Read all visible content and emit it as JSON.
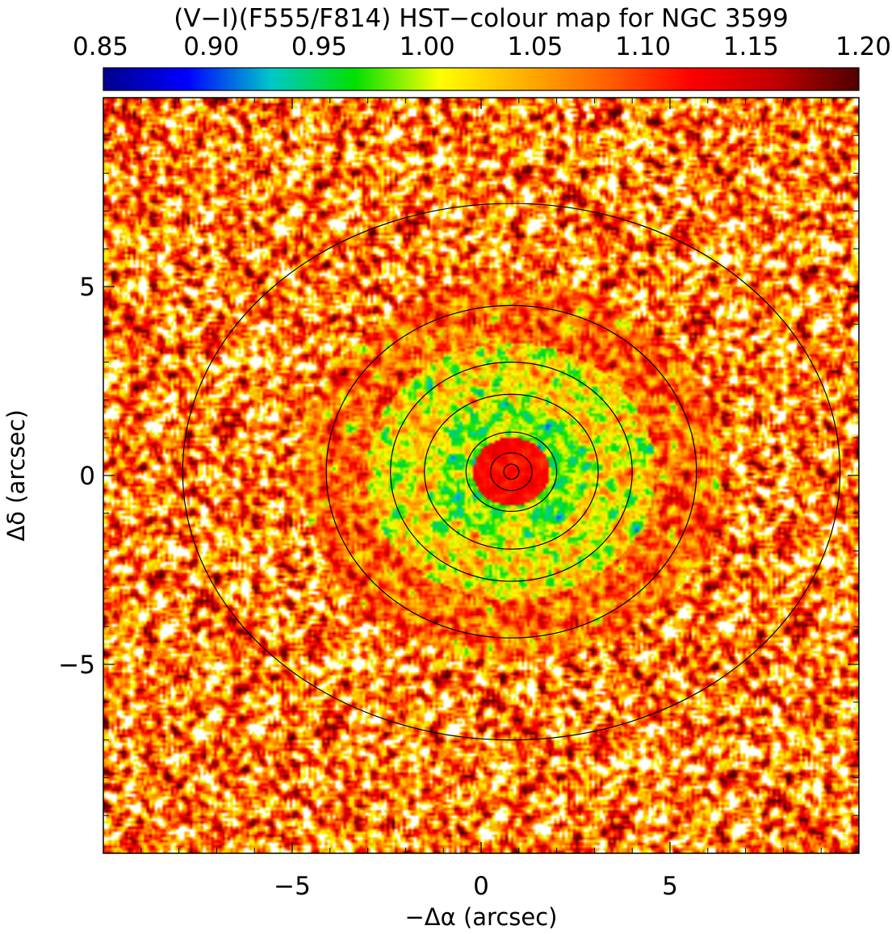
{
  "chart_data": {
    "type": "heatmap",
    "title": "(V−I)(F555/F814) HST−colour map for NGC 3599",
    "xlabel": "−Δα (arcsec)",
    "ylabel": "Δδ (arcsec)",
    "xlim": [
      -10,
      10
    ],
    "ylim": [
      -10,
      10
    ],
    "x_ticks": [
      -5,
      0,
      5
    ],
    "x_tick_labels": [
      "−5",
      "0",
      "5"
    ],
    "y_ticks": [
      -5,
      0,
      5
    ],
    "y_tick_labels": [
      "−5",
      "0",
      "5"
    ],
    "colorbar": {
      "min": 0.85,
      "max": 1.2,
      "ticks": [
        0.85,
        0.9,
        0.95,
        1.0,
        1.05,
        1.1,
        1.15,
        1.2
      ],
      "tick_labels": [
        "0.85",
        "0.90",
        "0.95",
        "1.00",
        "1.05",
        "1.10",
        "1.15",
        "1.20"
      ],
      "colormap": [
        "#00008c",
        "#0000ff",
        "#00c8c8",
        "#00e000",
        "#ffff00",
        "#ffb000",
        "#ff6000",
        "#ff0000",
        "#c00000",
        "#500000"
      ]
    },
    "center": [
      0.8,
      0.1
    ],
    "contours": [
      {
        "a": 0.2,
        "b": 0.2
      },
      {
        "a": 0.55,
        "b": 0.5
      },
      {
        "a": 1.2,
        "b": 1.05
      },
      {
        "a": 2.3,
        "b": 2.05
      },
      {
        "a": 3.2,
        "b": 2.9
      },
      {
        "a": 4.9,
        "b": 4.4
      },
      {
        "a": 8.7,
        "b": 7.1
      }
    ]
  }
}
